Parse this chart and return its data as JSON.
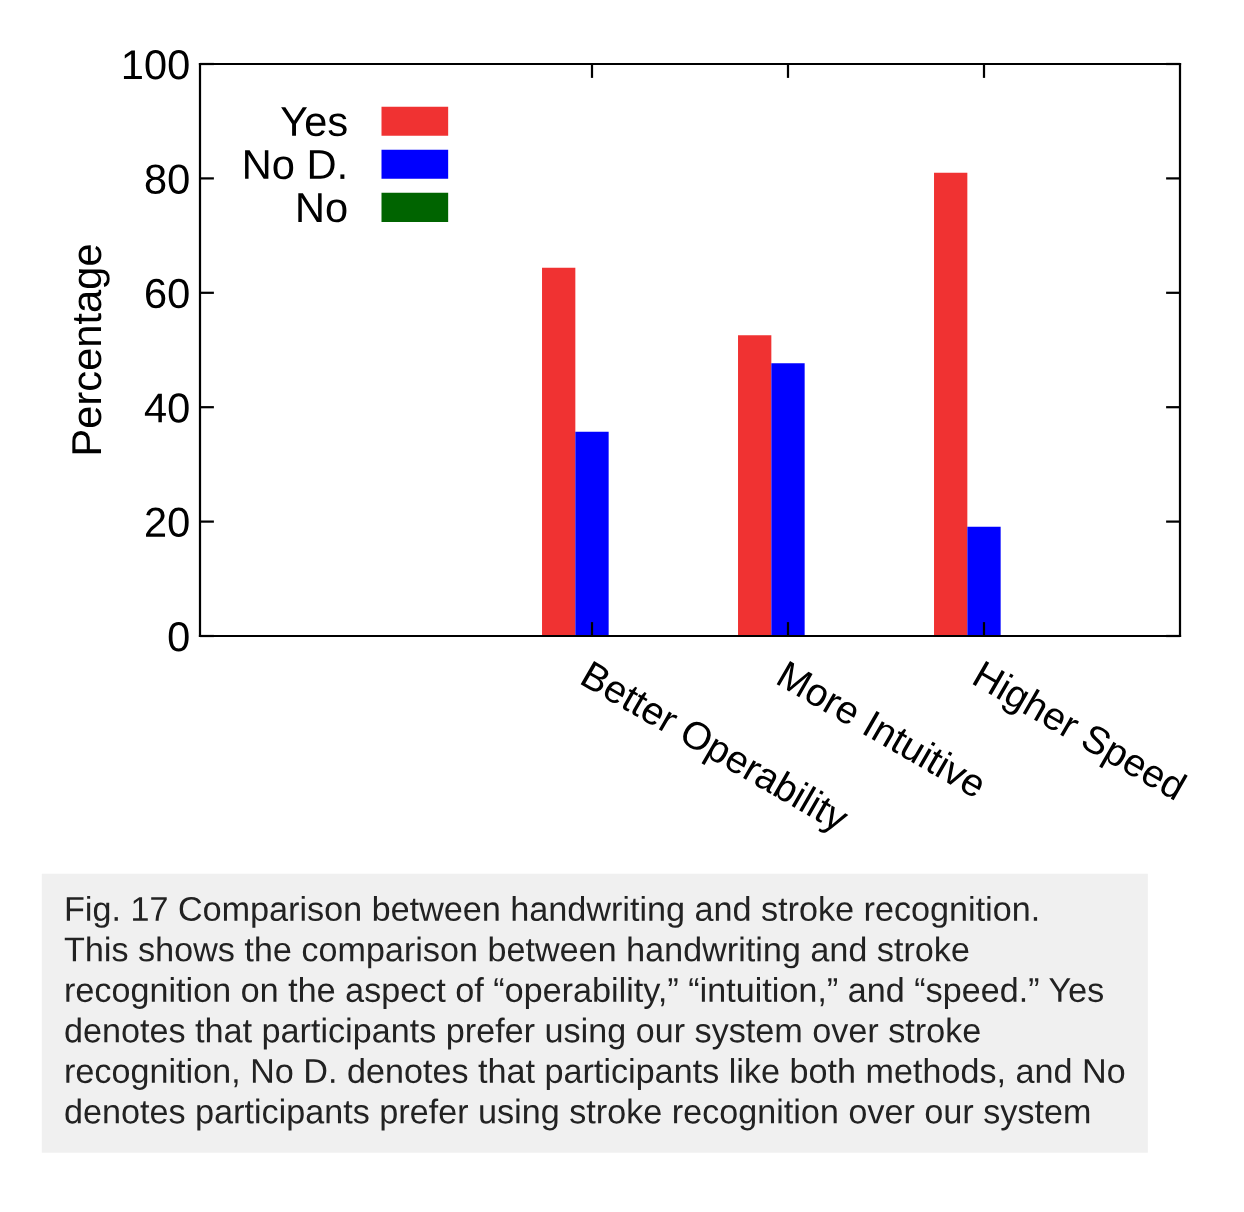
{
  "chart_data": {
    "type": "bar",
    "ylabel": "Percentage",
    "categories": [
      "Better Operability",
      "More Intuitive",
      "Higher Speed"
    ],
    "series": [
      {
        "name": "Yes",
        "color": "#f03232",
        "values": [
          64.4,
          52.6,
          81.0
        ]
      },
      {
        "name": "No D.",
        "color": "#0000ff",
        "values": [
          35.7,
          47.7,
          19.1
        ]
      },
      {
        "name": "No",
        "color": "#006400",
        "values": [
          0,
          0,
          0
        ]
      }
    ],
    "ylim": [
      0,
      100
    ],
    "yticks": [
      0,
      20,
      40,
      60,
      80,
      100
    ],
    "grid": false,
    "legend": "top left",
    "annotations": [
      "Fig. 17 Comparison between handwriting and stroke recognition.\nThis shows the comparison between handwriting and stroke\nrecognition on the aspect of “operability,” “intuition,” and “speed.” Yes\ndenotes that participants prefer using our system over stroke\nrecognition, No D. denotes that participants like both methods, and No\ndenotes participants prefer using stroke recognition over our system"
    ]
  }
}
